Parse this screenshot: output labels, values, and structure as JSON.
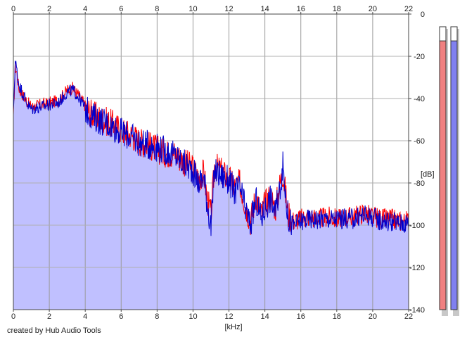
{
  "chart_data": {
    "type": "area",
    "xlabel": "[kHz]",
    "ylabel": "[dB]",
    "xlim": [
      0,
      22
    ],
    "ylim": [
      -140,
      0
    ],
    "x_ticks": [
      0,
      2,
      4,
      6,
      8,
      10,
      12,
      14,
      16,
      18,
      20,
      22
    ],
    "y_ticks": [
      0,
      -20,
      -40,
      -60,
      -80,
      -100,
      -120,
      -140
    ],
    "grid": true,
    "series": [
      {
        "color": "#ff0000",
        "x": [
          0,
          0.1,
          0.2,
          0.3,
          0.5,
          0.8,
          1.0,
          1.5,
          2.0,
          2.5,
          3.0,
          3.3,
          3.6,
          3.9,
          4.1,
          4.5,
          5.0,
          5.5,
          6.0,
          6.5,
          7.0,
          7.5,
          8.0,
          8.5,
          9.0,
          9.5,
          10.0,
          10.3,
          10.6,
          10.8,
          11.0,
          11.2,
          11.5,
          12.0,
          12.3,
          12.6,
          12.9,
          13.2,
          13.5,
          13.8,
          14.0,
          14.3,
          14.6,
          14.8,
          15.0,
          15.3,
          15.6,
          16.0,
          16.5,
          17.0,
          17.5,
          18.0,
          18.5,
          19.0,
          19.5,
          20.0,
          20.5,
          21.0,
          21.5,
          22.0
        ],
        "values": [
          -50,
          -25,
          -28,
          -35,
          -38,
          -42,
          -44,
          -43,
          -42,
          -41,
          -36,
          -35,
          -38,
          -42,
          -45,
          -48,
          -50,
          -52,
          -55,
          -57,
          -60,
          -62,
          -64,
          -66,
          -66,
          -70,
          -73,
          -78,
          -75,
          -88,
          -95,
          -72,
          -74,
          -78,
          -82,
          -80,
          -90,
          -98,
          -86,
          -95,
          -90,
          -86,
          -92,
          -82,
          -75,
          -95,
          -98,
          -97,
          -96,
          -97,
          -96,
          -97,
          -96,
          -96,
          -94,
          -96,
          -97,
          -97,
          -98,
          -98
        ]
      },
      {
        "color": "#0000cc",
        "x": [
          0,
          0.1,
          0.2,
          0.3,
          0.5,
          0.8,
          1.0,
          1.5,
          2.0,
          2.5,
          3.0,
          3.3,
          3.6,
          3.9,
          4.1,
          4.5,
          5.0,
          5.5,
          6.0,
          6.5,
          7.0,
          7.5,
          8.0,
          8.5,
          9.0,
          9.5,
          10.0,
          10.3,
          10.6,
          10.8,
          11.0,
          11.2,
          11.5,
          12.0,
          12.3,
          12.6,
          12.9,
          13.2,
          13.5,
          13.8,
          14.0,
          14.3,
          14.6,
          14.8,
          15.0,
          15.3,
          15.6,
          16.0,
          16.5,
          17.0,
          17.5,
          18.0,
          18.5,
          19.0,
          19.5,
          20.0,
          20.5,
          21.0,
          21.5,
          22.0
        ],
        "values": [
          -48,
          -22,
          -27,
          -33,
          -37,
          -43,
          -45,
          -44,
          -43,
          -42,
          -37,
          -36,
          -39,
          -43,
          -46,
          -49,
          -51,
          -53,
          -56,
          -58,
          -61,
          -62,
          -63,
          -65,
          -67,
          -71,
          -74,
          -80,
          -77,
          -90,
          -101,
          -74,
          -76,
          -79,
          -84,
          -82,
          -92,
          -100,
          -88,
          -97,
          -92,
          -87,
          -94,
          -84,
          -72,
          -97,
          -100,
          -98,
          -97,
          -97,
          -97,
          -97,
          -97,
          -97,
          -95,
          -96,
          -98,
          -98,
          -99,
          -99
        ]
      }
    ],
    "credit": "created by Hub Audio Tools",
    "meters": {
      "left": {
        "color": "#f08080",
        "level_db": -7,
        "level_fraction": 0.95
      },
      "right": {
        "color": "#8080f0",
        "level_db": -7,
        "level_fraction": 0.95
      }
    }
  }
}
